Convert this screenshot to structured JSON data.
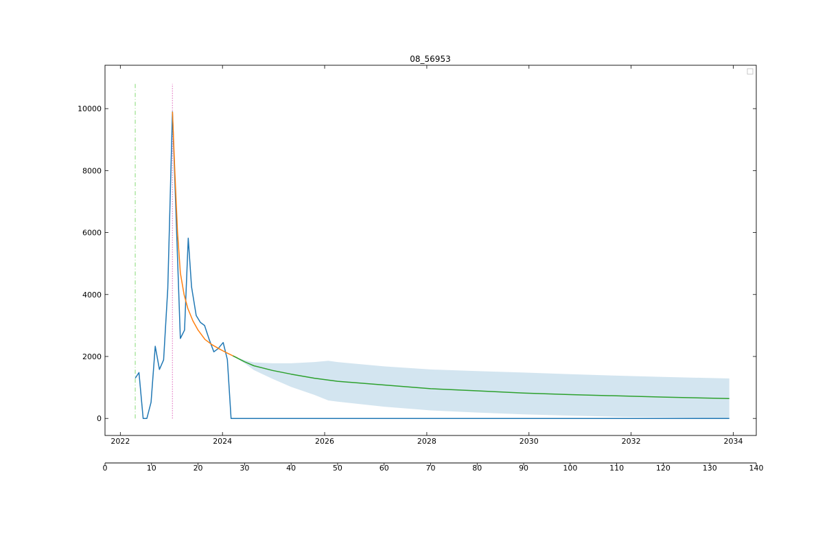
{
  "chart_data": {
    "type": "line",
    "title": "08_56953",
    "xlabel": "",
    "ylabel": "",
    "ylim": [
      -550,
      11400
    ],
    "yticks": [
      0,
      2000,
      4000,
      6000,
      8000,
      10000
    ],
    "ytick_labels": [
      "0",
      "2000",
      "4000",
      "6000",
      "8000",
      "10000"
    ],
    "x_date_axis": {
      "range_years": [
        2021.7,
        2034.45
      ],
      "ticks": [
        2022,
        2024,
        2026,
        2028,
        2030,
        2032,
        2034
      ],
      "tick_labels": [
        "2022",
        "2024",
        "2026",
        "2028",
        "2030",
        "2032",
        "2034"
      ]
    },
    "x_index_axis": {
      "range": [
        0,
        140
      ],
      "ticks": [
        0,
        10,
        20,
        30,
        40,
        50,
        60,
        70,
        80,
        90,
        100,
        110,
        120,
        130,
        140
      ],
      "tick_labels": [
        "0",
        "10",
        "20",
        "30",
        "40",
        "50",
        "60",
        "70",
        "80",
        "90",
        "100",
        "110",
        "120",
        "130",
        "140"
      ]
    },
    "grid": false,
    "legend": {
      "placement": "top-right",
      "entries": []
    },
    "colors": {
      "actual": "#1f77b4",
      "fit": "#ff7f0e",
      "forecast": "#2ca02c",
      "band": "#aecfe3",
      "start_marker": "#98df8a",
      "peak_marker": "#e377c2"
    },
    "vertical_markers": [
      {
        "name": "start",
        "x_index": 6.5,
        "style": "dashdot",
        "color": "#98df8a",
        "y_range": [
          0,
          10800
        ]
      },
      {
        "name": "peak",
        "x_index": 14.5,
        "style": "dotted",
        "color": "#e377c2",
        "y_range": [
          0,
          10800
        ]
      }
    ],
    "series": [
      {
        "name": "actual",
        "color": "#1f77b4",
        "x": [
          6.5,
          7.3,
          8.2,
          9.0,
          9.9,
          10.8,
          11.7,
          12.6,
          13.5,
          14.5,
          15.4,
          16.2,
          17.1,
          17.9,
          18.6,
          19.6,
          20.5,
          21.4,
          22.4,
          23.4,
          24.3,
          25.4,
          26.3,
          27.1,
          134.2
        ],
        "y": [
          1300,
          1480,
          0,
          0,
          520,
          2330,
          1580,
          1890,
          4200,
          9900,
          6000,
          2580,
          2850,
          5820,
          4250,
          3320,
          3100,
          3000,
          2550,
          2150,
          2250,
          2450,
          1900,
          0,
          0
        ]
      },
      {
        "name": "fit",
        "color": "#ff7f0e",
        "x": [
          14.5,
          15.0,
          15.6,
          16.2,
          17.0,
          17.8,
          18.9,
          20.0,
          21.5,
          23.0,
          24.5,
          26.0,
          27.5,
          28.5
        ],
        "y": [
          9900,
          8000,
          6000,
          4700,
          4000,
          3550,
          3150,
          2850,
          2550,
          2380,
          2250,
          2130,
          2020,
          1950
        ]
      },
      {
        "name": "forecast",
        "color": "#2ca02c",
        "x": [
          27.5,
          30,
          32,
          36,
          40,
          45,
          50,
          60,
          70,
          80,
          90,
          100,
          110,
          120,
          134.2
        ],
        "y": [
          2020,
          1830,
          1700,
          1550,
          1430,
          1300,
          1200,
          1080,
          960,
          890,
          820,
          770,
          730,
          690,
          640
        ]
      }
    ],
    "band": {
      "name": "forecast-interval",
      "x": [
        27.5,
        30,
        32,
        36,
        40,
        45,
        48,
        50,
        60,
        70,
        80,
        90,
        100,
        110,
        120,
        134.2
      ],
      "upper": [
        2020,
        1880,
        1810,
        1780,
        1780,
        1820,
        1860,
        1820,
        1680,
        1580,
        1530,
        1480,
        1430,
        1380,
        1340,
        1290
      ],
      "lower": [
        2020,
        1780,
        1560,
        1280,
        1020,
        760,
        580,
        540,
        380,
        260,
        190,
        130,
        90,
        55,
        35,
        0
      ]
    }
  }
}
